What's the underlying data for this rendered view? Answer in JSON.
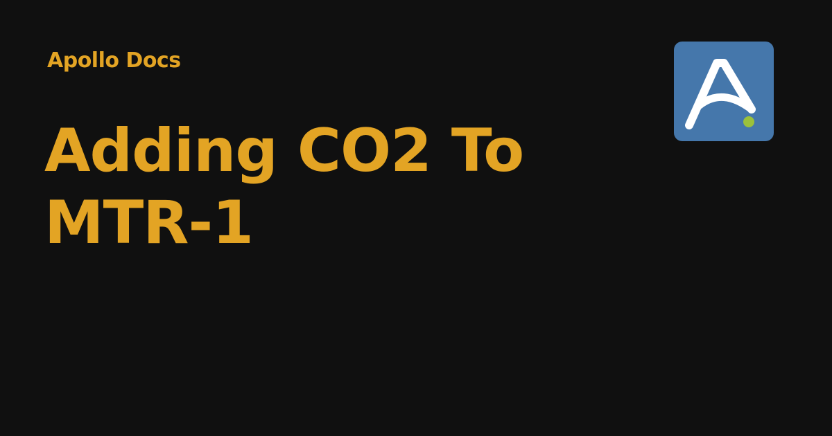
{
  "header": {
    "site_name": "Apollo Docs"
  },
  "page": {
    "title": "Adding CO2 To MTR-1"
  },
  "logo": {
    "icon": "apollo-logo-icon",
    "letter": "A",
    "background_color": "#4577ab",
    "letter_color": "#ffffff",
    "dot_color": "#9bc13b"
  },
  "theme": {
    "background": "#101010",
    "accent": "#e3a424"
  }
}
